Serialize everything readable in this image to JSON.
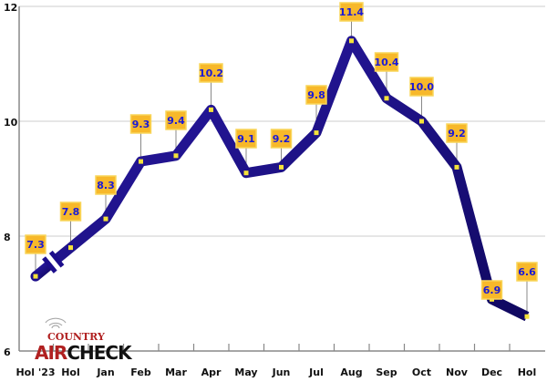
{
  "chart_data": {
    "type": "line",
    "categories": [
      "Hol '23",
      "Hol",
      "Jan",
      "Feb",
      "Mar",
      "Apr",
      "May",
      "Jun",
      "Jul",
      "Aug",
      "Sep",
      "Oct",
      "Nov",
      "Dec",
      "Hol"
    ],
    "values": [
      7.3,
      7.8,
      8.3,
      9.3,
      9.4,
      10.2,
      9.1,
      9.2,
      9.8,
      11.4,
      10.4,
      10.0,
      9.2,
      6.9,
      6.6
    ],
    "data_labels": [
      "7.3",
      "7.8",
      "8.3",
      "9.3",
      "9.4",
      "10.2",
      "9.1",
      "9.2",
      "9.8",
      "11.4",
      "10.4",
      "10.0",
      "9.2",
      "6.9",
      "6.6"
    ],
    "ylim": [
      6,
      12
    ],
    "yticks": [
      "6",
      "8",
      "10",
      "12"
    ],
    "grid": true,
    "axis_break_between": [
      "Hol '23",
      "Hol"
    ],
    "colors": {
      "line": "#1c0d8c",
      "label_box": "#f7b82a",
      "label_text": "#1a1ad6",
      "marker": "#f5e23a",
      "grid": "#dddddd"
    }
  },
  "logo": {
    "top": "COUNTRY",
    "left": "AIR",
    "right": "CHECK"
  }
}
